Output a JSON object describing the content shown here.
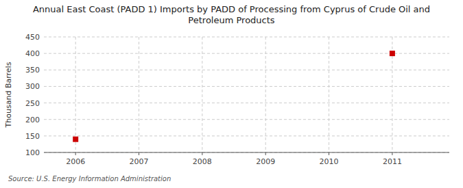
{
  "chart_data": {
    "type": "scatter",
    "title": "Annual East Coast (PADD 1) Imports by PADD of Processing from Cyprus of Crude Oil and\nPetroleum Products",
    "ylabel": "Thousand Barrels",
    "source": "Source: U.S. Energy Information Administration",
    "x": [
      2006,
      2011
    ],
    "values": [
      140,
      400
    ],
    "color": "#cc0000",
    "marker": "square",
    "xlim": [
      2005.5,
      2011.9
    ],
    "ylim": [
      100,
      450
    ],
    "xticks": [
      2006,
      2007,
      2008,
      2009,
      2010,
      2011
    ],
    "yticks": [
      100,
      150,
      200,
      250,
      300,
      350,
      400,
      450
    ],
    "grid": true
  }
}
